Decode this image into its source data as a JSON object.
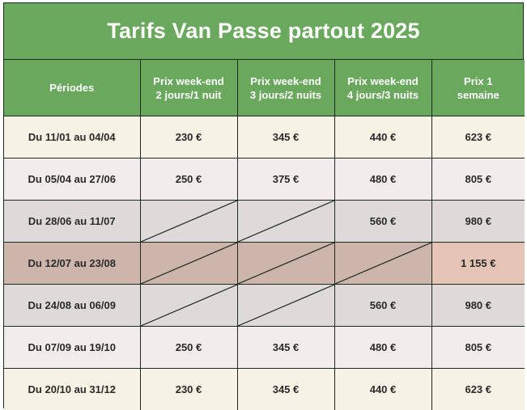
{
  "title": "Tarifs Van Passe partout 2025",
  "headers": {
    "periods": "Périodes",
    "col2_line1": "Prix week-end",
    "col2_line2": "2 jours/1 nuit",
    "col3_line1": "Prix week-end",
    "col3_line2": "3 jours/2 nuits",
    "col4_line1": "Prix week-end",
    "col4_line2": "4 jours/3 nuits",
    "col5_line1": "Prix 1",
    "col5_line2": "semaine"
  },
  "colors": {
    "header_green": "#6aa85e",
    "row_cream": "#f6f2e4",
    "row_pink": "#f3ecec",
    "row_grey": "#dedad9",
    "row_tan": "#cdb5ab",
    "highlight": "#e4c4b4"
  },
  "rows": [
    {
      "period": "Du 11/01 au 04/04",
      "p2": "230 €",
      "p3": "345 €",
      "p4": "440 €",
      "p5": "623 €",
      "bg": "#f6f2e4"
    },
    {
      "period": "Du 05/04 au 27/06",
      "p2": "250 €",
      "p3": "375 €",
      "p4": "480 €",
      "p5": "805 €",
      "bg": "#f3ecec"
    },
    {
      "period": "Du 28/06 au 11/07",
      "p2": "",
      "p3": "",
      "p4": "560 €",
      "p5": "980 €",
      "bg": "#dedad9"
    },
    {
      "period": "Du 12/07 au 23/08",
      "p2": "",
      "p3": "",
      "p4": "",
      "p5": "1 155 €",
      "bg": "#cdb5ab"
    },
    {
      "period": "Du 24/08 au 06/09",
      "p2": "",
      "p3": "",
      "p4": "560 €",
      "p5": "980 €",
      "bg": "#dedad9"
    },
    {
      "period": "Du 07/09 au 19/10",
      "p2": "250 €",
      "p3": "345 €",
      "p4": "480 €",
      "p5": "805 €",
      "bg": "#f3ecec"
    },
    {
      "period": "Du 20/10 au 31/12",
      "p2": "230 €",
      "p3": "345 €",
      "p4": "440 €",
      "p5": "623 €",
      "bg": "#f6f2e4"
    }
  ]
}
